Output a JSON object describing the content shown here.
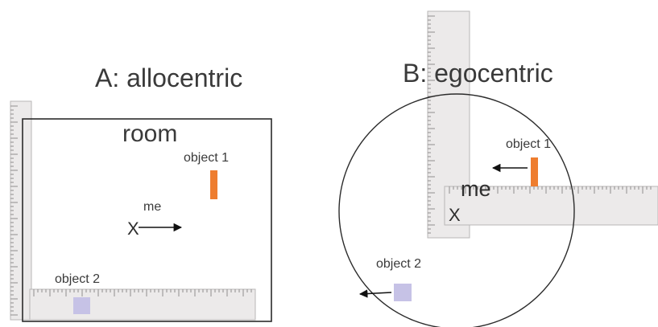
{
  "panel_a": {
    "title": "A: allocentric",
    "frame_label": "room",
    "self_label": "me",
    "self_marker": "X",
    "object_1_label": "object 1",
    "object_2_label": "object 2"
  },
  "panel_b": {
    "title": "B: egocentric",
    "self_label": "me",
    "self_marker": "X",
    "object_1_label": "object 1",
    "object_2_label": "object 2"
  },
  "colors": {
    "object_1": "#ee7d2f",
    "object_2": "#c6c2e6",
    "ruler": "#eceaea",
    "frame": "#2b2b2b",
    "arrow": "#111111"
  }
}
